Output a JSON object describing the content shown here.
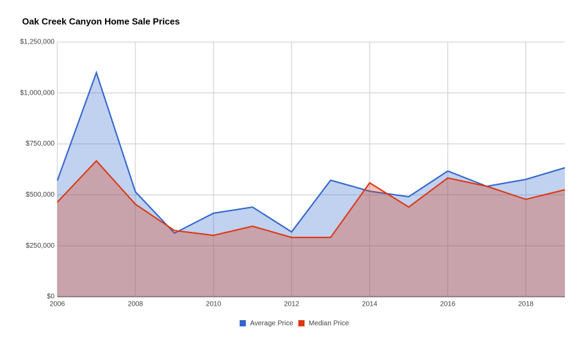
{
  "chart_data": {
    "type": "area",
    "title": "Oak Creek Canyon Home Sale Prices",
    "x": [
      2006,
      2007,
      2008,
      2009,
      2010,
      2011,
      2012,
      2013,
      2014,
      2015,
      2016,
      2017,
      2018,
      2019
    ],
    "series": [
      {
        "name": "Average Price",
        "color": "#3366cc",
        "values": [
          570000,
          1100000,
          515000,
          312000,
          410000,
          440000,
          318000,
          572000,
          518000,
          491000,
          617000,
          542000,
          576000,
          633000
        ]
      },
      {
        "name": "Median Price",
        "color": "#dc3912",
        "values": [
          464000,
          667000,
          454000,
          325000,
          301000,
          346000,
          291000,
          291000,
          559000,
          440000,
          583000,
          542000,
          478000,
          525000
        ]
      }
    ],
    "xlim": [
      2006,
      2019
    ],
    "xticks": [
      2006,
      2008,
      2010,
      2012,
      2014,
      2016,
      2018
    ],
    "ylim": [
      0,
      1250000
    ],
    "yticks": [
      {
        "value": 0,
        "label": "$0"
      },
      {
        "value": 250000,
        "label": "$250,000"
      },
      {
        "value": 500000,
        "label": "$500,000"
      },
      {
        "value": 750000,
        "label": "$750,000"
      },
      {
        "value": 1000000,
        "label": "$1,000,000"
      },
      {
        "value": 1250000,
        "label": "$1,250,000"
      }
    ],
    "grid": true,
    "legend": "bottom"
  }
}
